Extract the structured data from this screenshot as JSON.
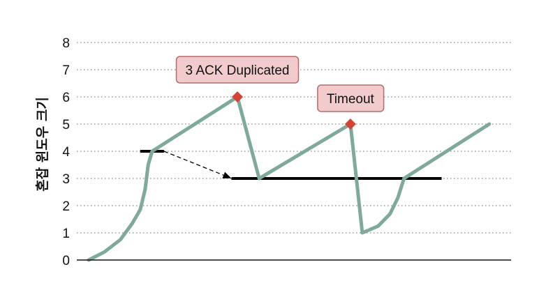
{
  "chart_data": {
    "type": "line",
    "ylabel": "혼잡 윈도우 크기",
    "xlabel": "",
    "ylim": [
      0,
      8
    ],
    "yticks": [
      0,
      1,
      2,
      3,
      4,
      5,
      6,
      7,
      8
    ],
    "grid": "horizontal-dotted",
    "series": [
      {
        "color": "#7fa99b",
        "points": [
          [
            0.0,
            0.0
          ],
          [
            0.8,
            0.3
          ],
          [
            1.6,
            0.75
          ],
          [
            2.2,
            1.35
          ],
          [
            2.6,
            1.85
          ],
          [
            2.85,
            2.6
          ],
          [
            3.0,
            3.5
          ],
          [
            3.2,
            4.0
          ],
          [
            7.5,
            6.0
          ],
          [
            8.6,
            3.0
          ],
          [
            13.2,
            5.0
          ],
          [
            13.8,
            1.0
          ],
          [
            14.6,
            1.25
          ],
          [
            15.2,
            1.7
          ],
          [
            15.6,
            2.3
          ],
          [
            15.9,
            3.0
          ],
          [
            20.2,
            5.0
          ]
        ]
      }
    ],
    "markers": [
      {
        "x": 7.5,
        "y": 6.0,
        "shape": "diamond",
        "color": "#d24535"
      },
      {
        "x": 13.2,
        "y": 5.0,
        "shape": "diamond",
        "color": "#d24535"
      }
    ],
    "threshold_lines": [
      {
        "x_start": 2.6,
        "x_end": 3.8,
        "y": 4.0,
        "color": "#000000"
      },
      {
        "x_start": 7.2,
        "x_end": 17.8,
        "y": 3.0,
        "color": "#000000"
      }
    ],
    "arrow": {
      "from": [
        3.8,
        4.0
      ],
      "to": [
        7.2,
        3.0
      ],
      "style": "dashed"
    },
    "annotations": [
      {
        "text": "3 ACK Duplicated",
        "x": 7.5,
        "y": 7.0,
        "fill": "#f2cccc",
        "border": "#b86a6a"
      },
      {
        "text": "Timeout",
        "x": 13.2,
        "y": 5.95,
        "fill": "#f2cccc",
        "border": "#b86a6a"
      }
    ]
  }
}
